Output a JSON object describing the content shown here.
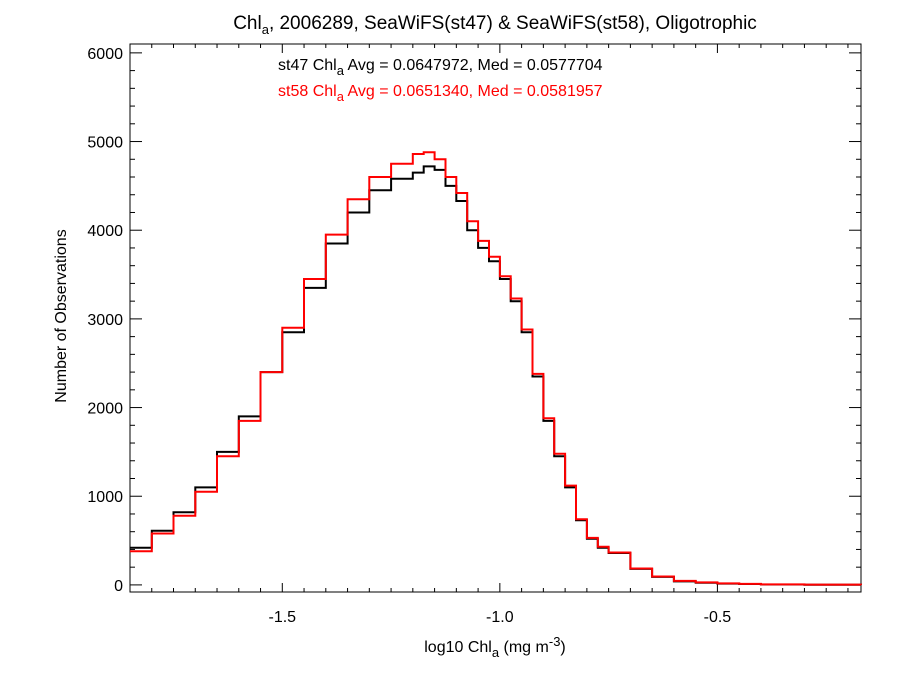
{
  "chart_data": {
    "type": "line",
    "title": {
      "pre": "Chl",
      "sub": "a",
      "post": ", 2006289, SeaWiFS(st47) & SeaWiFS(st58), Oligotrophic"
    },
    "xlabel": {
      "pre": "log10 Chl",
      "sub": "a",
      "mid": " (mg m",
      "sup": "-3",
      "post": ")"
    },
    "ylabel": "Number of Observations",
    "xlim": [
      -1.85,
      -0.17
    ],
    "ylim": [
      -80,
      6100
    ],
    "xticks": [
      {
        "value": -1.5,
        "label": "-1.5"
      },
      {
        "value": -1.0,
        "label": "-1.0"
      },
      {
        "value": -0.5,
        "label": "-0.5"
      }
    ],
    "yticks": [
      {
        "value": 0,
        "label": "0"
      },
      {
        "value": 1000,
        "label": "1000"
      },
      {
        "value": 2000,
        "label": "2000"
      },
      {
        "value": 3000,
        "label": "3000"
      },
      {
        "value": 4000,
        "label": "4000"
      },
      {
        "value": 5000,
        "label": "5000"
      },
      {
        "value": 6000,
        "label": "6000"
      }
    ],
    "grid": false,
    "series": [
      {
        "id": "st47",
        "color": "#000000",
        "label": {
          "pre": "st47 Chl",
          "sub": "a",
          "post": " Avg = 0.0647972, Med = 0.0577704"
        },
        "x": [
          -1.85,
          -1.8,
          -1.75,
          -1.7,
          -1.65,
          -1.6,
          -1.55,
          -1.5,
          -1.45,
          -1.4,
          -1.35,
          -1.3,
          -1.25,
          -1.2,
          -1.175,
          -1.15,
          -1.125,
          -1.1,
          -1.075,
          -1.05,
          -1.025,
          -1.0,
          -0.975,
          -0.95,
          -0.925,
          -0.9,
          -0.875,
          -0.85,
          -0.825,
          -0.8,
          -0.775,
          -0.75,
          -0.7,
          -0.65,
          -0.6,
          -0.55,
          -0.5,
          -0.45,
          -0.4,
          -0.3,
          -0.17
        ],
        "y": [
          420,
          610,
          820,
          1100,
          1500,
          1900,
          2400,
          2850,
          3350,
          3850,
          4200,
          4450,
          4580,
          4650,
          4720,
          4680,
          4500,
          4330,
          4000,
          3800,
          3650,
          3450,
          3200,
          2850,
          2350,
          1850,
          1450,
          1100,
          730,
          520,
          420,
          360,
          180,
          90,
          40,
          25,
          15,
          10,
          5,
          2,
          0
        ]
      },
      {
        "id": "st58",
        "color": "#ff0000",
        "label": {
          "pre": "st58 Chl",
          "sub": "a",
          "post": " Avg = 0.0651340, Med = 0.0581957"
        },
        "x": [
          -1.85,
          -1.8,
          -1.75,
          -1.7,
          -1.65,
          -1.6,
          -1.55,
          -1.5,
          -1.45,
          -1.4,
          -1.35,
          -1.3,
          -1.25,
          -1.2,
          -1.175,
          -1.15,
          -1.125,
          -1.1,
          -1.075,
          -1.05,
          -1.025,
          -1.0,
          -0.975,
          -0.95,
          -0.925,
          -0.9,
          -0.875,
          -0.85,
          -0.825,
          -0.8,
          -0.775,
          -0.75,
          -0.7,
          -0.65,
          -0.6,
          -0.55,
          -0.5,
          -0.45,
          -0.4,
          -0.3,
          -0.17
        ],
        "y": [
          380,
          580,
          780,
          1050,
          1450,
          1850,
          2400,
          2900,
          3450,
          3950,
          4350,
          4600,
          4750,
          4860,
          4880,
          4800,
          4600,
          4420,
          4100,
          3880,
          3700,
          3480,
          3230,
          2880,
          2380,
          1880,
          1480,
          1120,
          740,
          530,
          430,
          365,
          185,
          95,
          45,
          28,
          17,
          11,
          6,
          3,
          0
        ]
      }
    ]
  }
}
